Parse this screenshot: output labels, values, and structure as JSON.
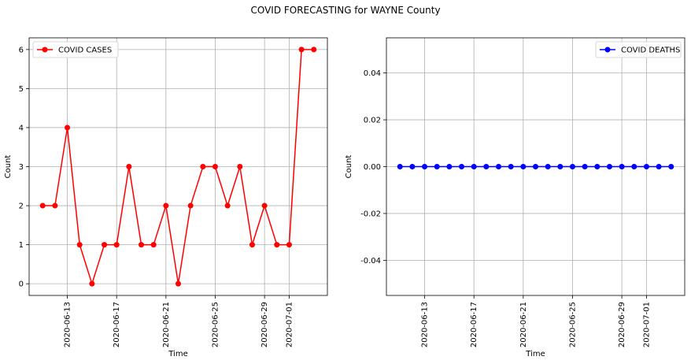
{
  "suptitle": "COVID FORECASTING for WAYNE County",
  "chart_data": [
    {
      "type": "line",
      "title": "",
      "xlabel": "Time",
      "ylabel": "Count",
      "x": [
        "2020-06-11",
        "2020-06-12",
        "2020-06-13",
        "2020-06-14",
        "2020-06-15",
        "2020-06-16",
        "2020-06-17",
        "2020-06-18",
        "2020-06-19",
        "2020-06-20",
        "2020-06-21",
        "2020-06-22",
        "2020-06-23",
        "2020-06-24",
        "2020-06-25",
        "2020-06-26",
        "2020-06-27",
        "2020-06-28",
        "2020-06-29",
        "2020-06-30",
        "2020-07-01",
        "2020-07-02",
        "2020-07-03"
      ],
      "series": [
        {
          "name": "COVID CASES",
          "color": "#ff0000",
          "values": [
            2,
            2,
            4,
            1,
            0,
            1,
            1,
            3,
            1,
            1,
            2,
            0,
            2,
            3,
            3,
            2,
            3,
            1,
            2,
            1,
            1,
            6,
            6
          ]
        }
      ],
      "xticks": [
        "2020-06-13",
        "2020-06-17",
        "2020-06-21",
        "2020-06-25",
        "2020-06-29",
        "2020-07-01"
      ],
      "yticks": [
        0,
        1,
        2,
        3,
        4,
        5,
        6
      ],
      "ylim": [
        -0.3,
        6.3
      ],
      "grid": true,
      "legend": "upper-left"
    },
    {
      "type": "line",
      "title": "",
      "xlabel": "Time",
      "ylabel": "Count",
      "x": [
        "2020-06-11",
        "2020-06-12",
        "2020-06-13",
        "2020-06-14",
        "2020-06-15",
        "2020-06-16",
        "2020-06-17",
        "2020-06-18",
        "2020-06-19",
        "2020-06-20",
        "2020-06-21",
        "2020-06-22",
        "2020-06-23",
        "2020-06-24",
        "2020-06-25",
        "2020-06-26",
        "2020-06-27",
        "2020-06-28",
        "2020-06-29",
        "2020-06-30",
        "2020-07-01",
        "2020-07-02",
        "2020-07-03"
      ],
      "series": [
        {
          "name": "COVID DEATHS",
          "color": "#0000ff",
          "values": [
            0,
            0,
            0,
            0,
            0,
            0,
            0,
            0,
            0,
            0,
            0,
            0,
            0,
            0,
            0,
            0,
            0,
            0,
            0,
            0,
            0,
            0,
            0
          ]
        }
      ],
      "xticks": [
        "2020-06-13",
        "2020-06-17",
        "2020-06-21",
        "2020-06-25",
        "2020-06-29",
        "2020-07-01"
      ],
      "yticks": [
        "-0.04",
        "-0.02",
        "0.00",
        "0.02",
        "0.04"
      ],
      "ylim": [
        -0.055,
        0.055
      ],
      "grid": true,
      "legend": "upper-right"
    }
  ]
}
